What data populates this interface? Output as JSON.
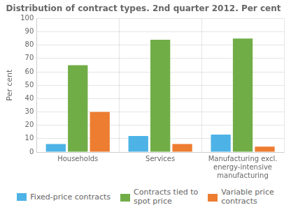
{
  "chart_data": {
    "type": "bar",
    "title": "Distribution of contract types. 2nd quarter 2012. Per cent",
    "ylabel": "Per cent",
    "categories": [
      "Households",
      "Services",
      "Manufacturing excl.\nenergy-intensive\nmanufacturing"
    ],
    "series": [
      {
        "name": "Fixed-price contracts",
        "color": "#4db3e6",
        "values": [
          6,
          12,
          13
        ]
      },
      {
        "name": "Contracts tied to\nspot price",
        "color": "#70ad47",
        "values": [
          65,
          84,
          85
        ]
      },
      {
        "name": "Variable price\ncontracts",
        "color": "#ed7d31",
        "values": [
          30,
          6,
          4
        ]
      }
    ],
    "ylim": [
      0,
      100
    ],
    "yticks": [
      0,
      10,
      20,
      30,
      40,
      50,
      60,
      70,
      80,
      90,
      100
    ],
    "grid": true,
    "legend": "bottom"
  }
}
